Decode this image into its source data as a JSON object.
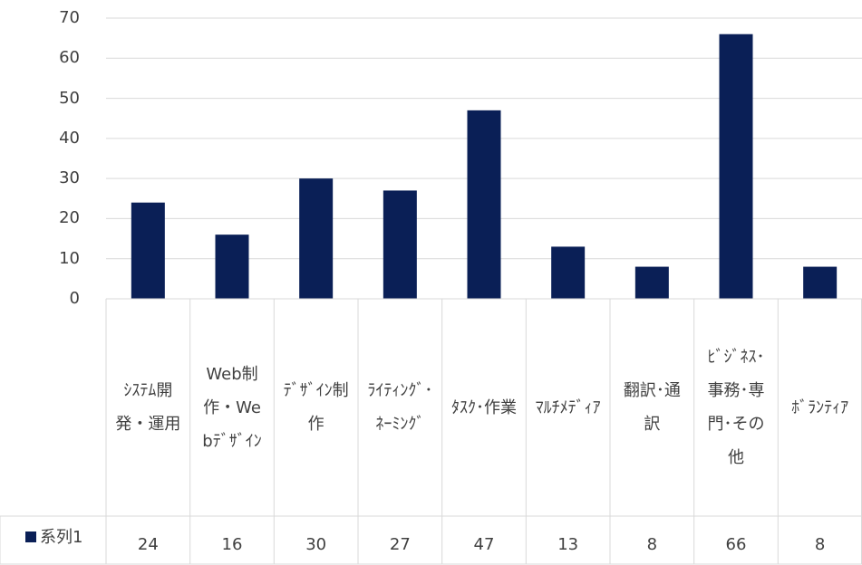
{
  "chart_data": {
    "type": "bar",
    "categories": [
      "ｼｽﾃﾑ開発・運用",
      "Web制作・Webﾃﾞｻﾞｲﾝ",
      "ﾃﾞｻﾞｲﾝ制作",
      "ﾗｲﾃｨﾝｸﾞ･ﾈｰﾐﾝｸﾞ",
      "ﾀｽｸ･作業",
      "ﾏﾙﾁﾒﾃﾞｨｱ",
      "翻訳･通訳",
      "ﾋﾞｼﾞﾈｽ･事務･専門･その他",
      "ﾎﾞﾗﾝﾃｨｱ"
    ],
    "series": [
      {
        "name": "系列1",
        "color": "#0a1f56",
        "values": [
          24,
          16,
          30,
          27,
          47,
          13,
          8,
          66,
          8
        ]
      }
    ],
    "ylim": [
      0,
      70
    ],
    "yticks": [
      0,
      10,
      20,
      30,
      40,
      50,
      60,
      70
    ],
    "grid": true,
    "data_table": true
  }
}
